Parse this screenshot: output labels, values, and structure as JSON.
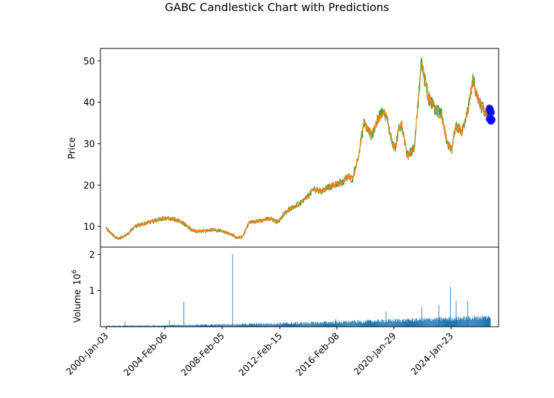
{
  "chart_data": {
    "type": "candlestick",
    "title": "GABC Candlestick Chart with Predictions",
    "x_tick_labels": [
      "2000-Jan-03",
      "2004-Feb-06",
      "2008-Feb-05",
      "2012-Feb-15",
      "2016-Feb-08",
      "2020-Jan-29",
      "2024-Jan-23"
    ],
    "x_range": [
      "2000-01-03",
      "2025-01-31"
    ],
    "price_panel": {
      "ylabel": "Price",
      "ylim": [
        5,
        53
      ],
      "yticks": [
        10,
        20,
        30,
        40,
        50
      ],
      "series": [
        {
          "name": "close",
          "x": [
            2000.0,
            2000.3,
            2000.6,
            2000.9,
            2001.2,
            2001.6,
            2002.0,
            2002.5,
            2003.0,
            2003.5,
            2004.0,
            2004.5,
            2005.0,
            2005.5,
            2006.0,
            2006.5,
            2007.0,
            2007.5,
            2008.0,
            2008.4,
            2008.8,
            2009.1,
            2009.5,
            2010.0,
            2010.5,
            2011.0,
            2011.5,
            2012.0,
            2012.5,
            2013.0,
            2013.5,
            2014.0,
            2014.5,
            2015.0,
            2015.5,
            2016.0,
            2016.3,
            2016.6,
            2016.9,
            2017.2,
            2017.6,
            2018.0,
            2018.5,
            2019.0,
            2019.3,
            2019.6,
            2020.0,
            2020.2,
            2020.4,
            2020.6,
            2021.0,
            2021.5,
            2022.0,
            2022.5,
            2022.8,
            2023.0,
            2023.4,
            2023.8,
            2024.1,
            2024.4,
            2024.8
          ],
          "y": [
            9.5,
            8.5,
            7.5,
            7.0,
            7.5,
            8.5,
            10.0,
            10.5,
            11.0,
            11.5,
            12.0,
            11.8,
            11.5,
            10.5,
            9.0,
            8.8,
            9.0,
            9.2,
            9.0,
            8.5,
            8.0,
            7.2,
            7.5,
            11.0,
            11.2,
            11.5,
            12.0,
            11.0,
            13.5,
            14.5,
            15.5,
            17.0,
            19.0,
            18.5,
            19.5,
            20.0,
            20.5,
            21.0,
            22.0,
            21.5,
            27.0,
            35.0,
            32.0,
            36.0,
            38.0,
            36.0,
            30.0,
            29.0,
            33.0,
            35.0,
            27.0,
            29.0,
            49.5,
            41.0,
            39.5,
            38.0,
            37.0,
            30.0,
            28.5,
            34.0,
            33.0
          ]
        },
        {
          "name": "close-late",
          "x": [
            2025.0,
            2025.3,
            2025.6,
            2025.9,
            2026.2,
            2026.5,
            2026.8
          ],
          "y": [
            34.5,
            39.0,
            45.5,
            41.0,
            39.0,
            37.5,
            38.0
          ]
        }
      ],
      "predictions": {
        "x": [
          2026.75,
          2026.85,
          2026.75,
          2026.85,
          2026.8,
          2026.9
        ],
        "y": [
          38.5,
          37.5,
          36.0,
          35.5,
          38.0,
          35.8
        ]
      }
    },
    "volume_panel": {
      "ylabel": "Volume",
      "ylabel_exponent": "6",
      "ylim": [
        0,
        2.2
      ],
      "yticks": [
        1,
        2
      ],
      "spikes": [
        {
          "x": 2008.8,
          "value": 2.0
        },
        {
          "x": 2005.4,
          "value": 0.68
        },
        {
          "x": 2024.0,
          "value": 1.1
        },
        {
          "x": 2024.4,
          "value": 0.72
        },
        {
          "x": 2025.2,
          "value": 0.7
        },
        {
          "x": 2022.0,
          "value": 0.55
        },
        {
          "x": 2019.5,
          "value": 0.42
        },
        {
          "x": 2023.2,
          "value": 0.6
        },
        {
          "x": 2016.0,
          "value": 0.22
        },
        {
          "x": 2004.4,
          "value": 0.18
        },
        {
          "x": 2001.3,
          "value": 0.15
        }
      ]
    }
  }
}
